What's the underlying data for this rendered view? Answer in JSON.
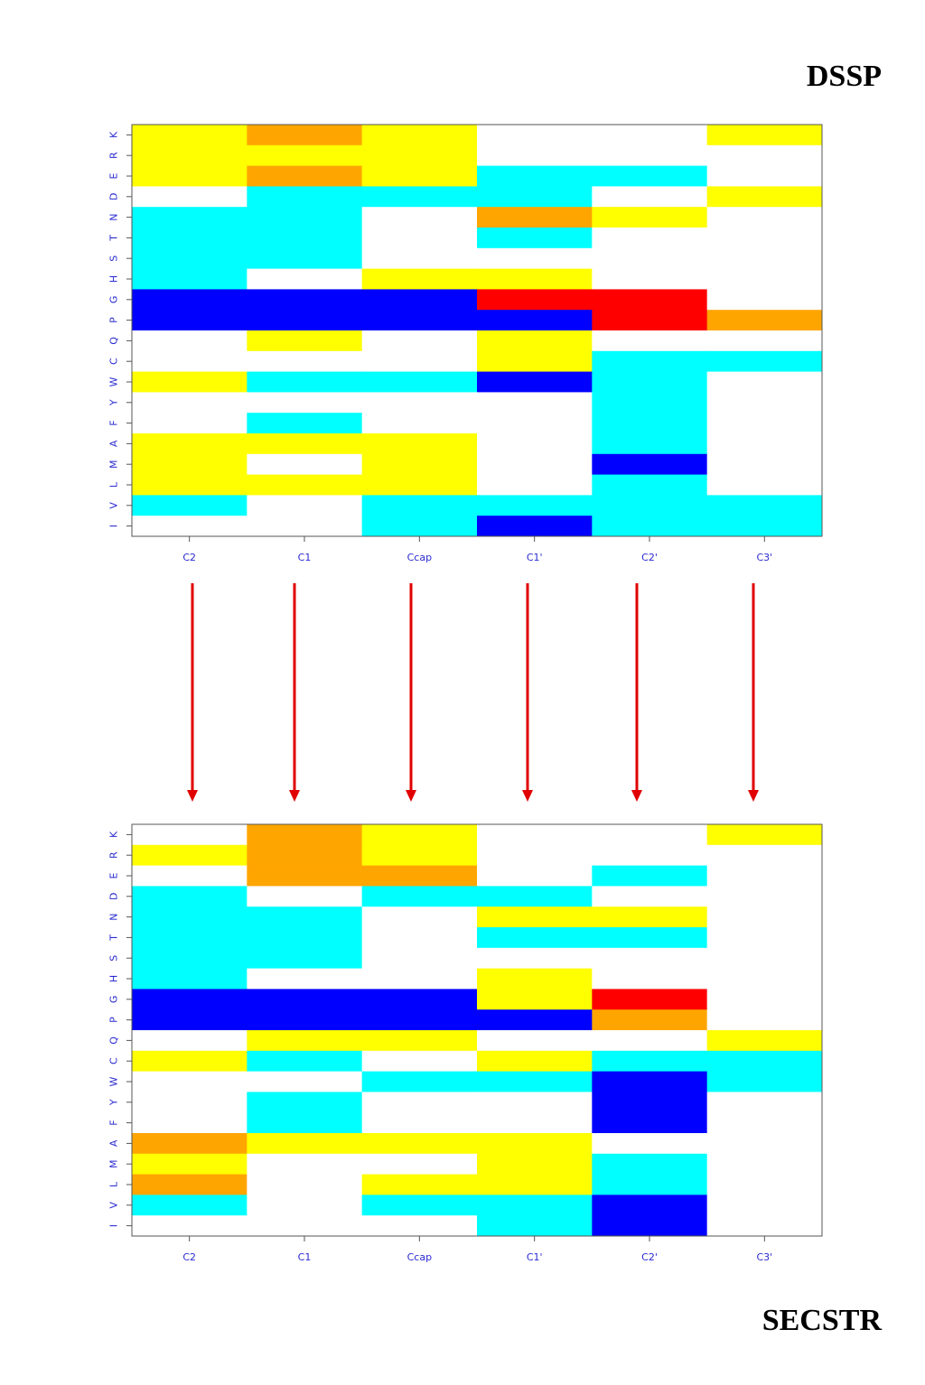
{
  "titles": {
    "top": "DSSP",
    "bottom": "SECSTR"
  },
  "colors": {
    "0": "#ffffff",
    "1": "#ffff00",
    "2": "#ffa500",
    "3": "#ff0000",
    "4": "#00ffff",
    "5": "#0000ff",
    "tick_label": "#2a2ad0",
    "arrow": "#e00000"
  },
  "chart_data": [
    {
      "type": "heatmap",
      "title": "DSSP",
      "columns": [
        "C2",
        "C1",
        "Ccap",
        "C1'",
        "C2'",
        "C3'"
      ],
      "rows": [
        "K",
        "R",
        "E",
        "D",
        "N",
        "T",
        "S",
        "H",
        "G",
        "P",
        "Q",
        "C",
        "W",
        "Y",
        "F",
        "A",
        "M",
        "L",
        "V",
        "I"
      ],
      "legend_note": "cell codes: 0 white, 1 yellow, 2 orange, 3 red, 4 cyan, 5 blue",
      "values": [
        [
          1,
          2,
          1,
          0,
          0,
          1
        ],
        [
          1,
          1,
          1,
          0,
          0,
          0
        ],
        [
          1,
          2,
          1,
          4,
          4,
          0
        ],
        [
          0,
          4,
          4,
          4,
          0,
          1
        ],
        [
          4,
          4,
          0,
          2,
          1,
          0
        ],
        [
          4,
          4,
          0,
          4,
          0,
          0
        ],
        [
          4,
          4,
          0,
          0,
          0,
          0
        ],
        [
          4,
          0,
          1,
          1,
          0,
          0
        ],
        [
          5,
          5,
          5,
          3,
          3,
          0
        ],
        [
          5,
          5,
          5,
          5,
          3,
          2
        ],
        [
          0,
          1,
          0,
          1,
          0,
          0
        ],
        [
          0,
          0,
          0,
          1,
          4,
          4
        ],
        [
          1,
          4,
          4,
          5,
          4,
          0
        ],
        [
          0,
          0,
          0,
          0,
          4,
          0
        ],
        [
          0,
          4,
          0,
          0,
          4,
          0
        ],
        [
          1,
          1,
          1,
          0,
          4,
          0
        ],
        [
          1,
          0,
          1,
          0,
          5,
          0
        ],
        [
          1,
          1,
          1,
          0,
          4,
          0
        ],
        [
          4,
          0,
          4,
          4,
          4,
          4
        ],
        [
          0,
          0,
          4,
          5,
          4,
          4
        ]
      ]
    },
    {
      "type": "heatmap",
      "title": "SECSTR",
      "columns": [
        "C2",
        "C1",
        "Ccap",
        "C1'",
        "C2'",
        "C3'"
      ],
      "rows": [
        "K",
        "R",
        "E",
        "D",
        "N",
        "T",
        "S",
        "H",
        "G",
        "P",
        "Q",
        "C",
        "W",
        "Y",
        "F",
        "A",
        "M",
        "L",
        "V",
        "I"
      ],
      "legend_note": "cell codes: 0 white, 1 yellow, 2 orange, 3 red, 4 cyan, 5 blue",
      "values": [
        [
          0,
          2,
          1,
          0,
          0,
          1
        ],
        [
          1,
          2,
          1,
          0,
          0,
          0
        ],
        [
          0,
          2,
          2,
          0,
          4,
          0
        ],
        [
          4,
          0,
          4,
          4,
          0,
          0
        ],
        [
          4,
          4,
          0,
          1,
          1,
          0
        ],
        [
          4,
          4,
          0,
          4,
          4,
          0
        ],
        [
          4,
          4,
          0,
          0,
          0,
          0
        ],
        [
          4,
          0,
          0,
          1,
          0,
          0
        ],
        [
          5,
          5,
          5,
          1,
          3,
          0
        ],
        [
          5,
          5,
          5,
          5,
          2,
          0
        ],
        [
          0,
          1,
          1,
          0,
          0,
          1
        ],
        [
          1,
          4,
          0,
          1,
          4,
          4
        ],
        [
          0,
          0,
          4,
          4,
          5,
          4
        ],
        [
          0,
          4,
          0,
          0,
          5,
          0
        ],
        [
          0,
          4,
          0,
          0,
          5,
          0
        ],
        [
          2,
          1,
          1,
          1,
          0,
          0
        ],
        [
          1,
          0,
          0,
          1,
          4,
          0
        ],
        [
          2,
          0,
          1,
          1,
          4,
          0
        ],
        [
          4,
          0,
          4,
          4,
          5,
          0
        ],
        [
          0,
          0,
          0,
          4,
          5,
          0
        ]
      ]
    }
  ]
}
